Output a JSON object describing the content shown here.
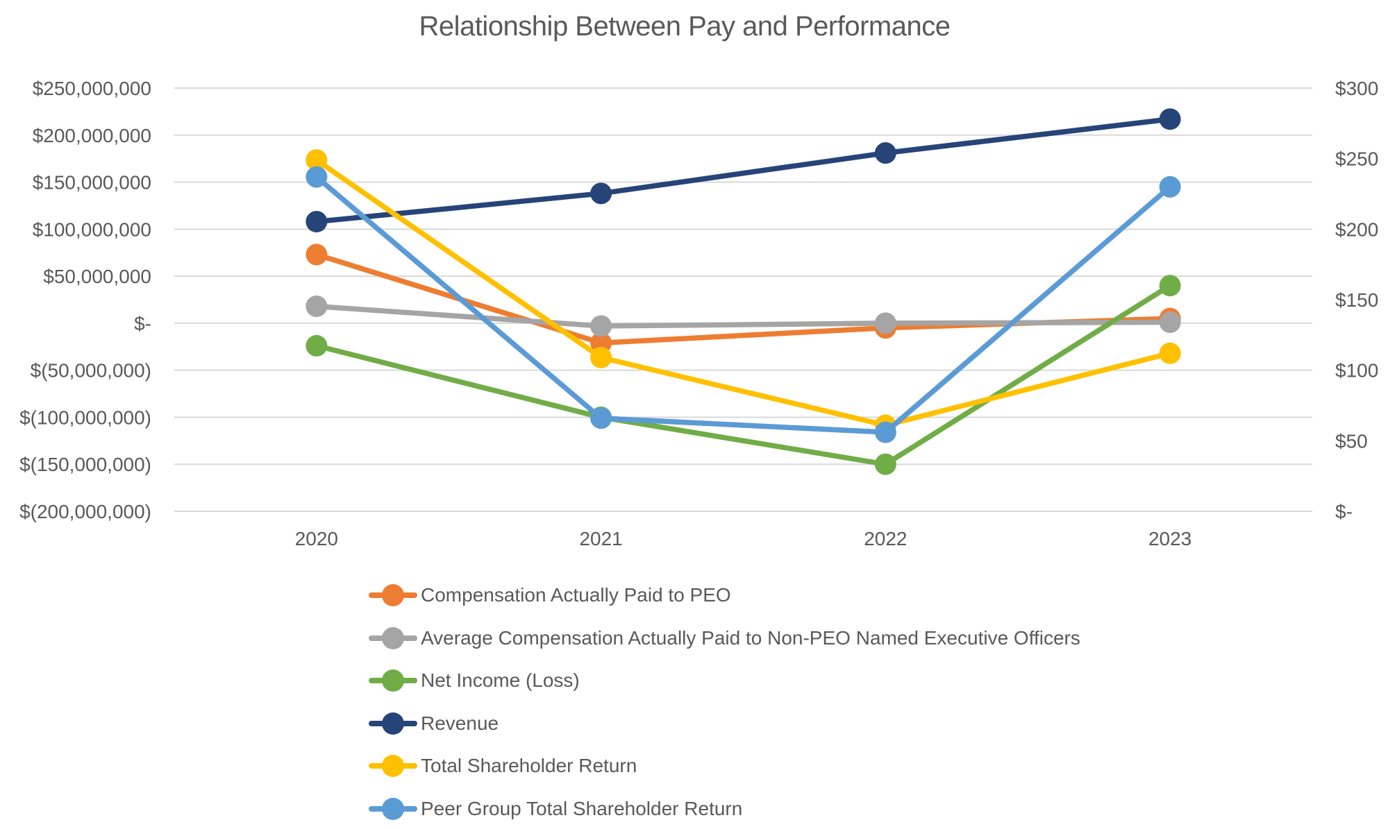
{
  "chart_data": {
    "type": "line",
    "title": "Relationship Between Pay and Performance",
    "x_categories": [
      "2020",
      "2021",
      "2022",
      "2023"
    ],
    "grid": true,
    "legend_position": "bottom-left",
    "colors": {
      "background": "#ffffff",
      "gridline": "#D9D9D9",
      "text": "#595959"
    },
    "left_axis": {
      "min": -200000000,
      "max": 250000000,
      "step": 50000000,
      "tick_labels": [
        "$250,000,000",
        "$200,000,000",
        "$150,000,000",
        "$100,000,000",
        "$50,000,000",
        "$-",
        "$(50,000,000)",
        "$(100,000,000)",
        "$(150,000,000)",
        "$(200,000,000)"
      ]
    },
    "right_axis": {
      "min": 0,
      "max": 300,
      "step": 50,
      "tick_labels": [
        "$300",
        "$250",
        "$200",
        "$150",
        "$100",
        "$50",
        "$-"
      ]
    },
    "series": [
      {
        "name": "Compensation Actually Paid to PEO",
        "color": "#ED7D31",
        "axis": "left",
        "values": [
          73000000,
          -21000000,
          -5000000,
          5000000
        ]
      },
      {
        "name": "Average Compensation Actually Paid to Non-PEO Named Executive Officers",
        "color": "#A5A5A5",
        "axis": "left",
        "values": [
          18000000,
          -3000000,
          0,
          1000000
        ]
      },
      {
        "name": "Net Income (Loss)",
        "color": "#70AD47",
        "axis": "left",
        "values": [
          -24000000,
          -100000000,
          -150000000,
          40000000
        ]
      },
      {
        "name": "Revenue",
        "color": "#264478",
        "axis": "left",
        "values": [
          108000000,
          138000000,
          181000000,
          217000000
        ]
      },
      {
        "name": "Total Shareholder Return",
        "color": "#FFC000",
        "axis": "right",
        "values": [
          249,
          109,
          61,
          112
        ]
      },
      {
        "name": "Peer Group Total Shareholder Return",
        "color": "#5B9BD5",
        "axis": "right",
        "values": [
          237,
          66,
          56,
          230
        ]
      }
    ]
  }
}
